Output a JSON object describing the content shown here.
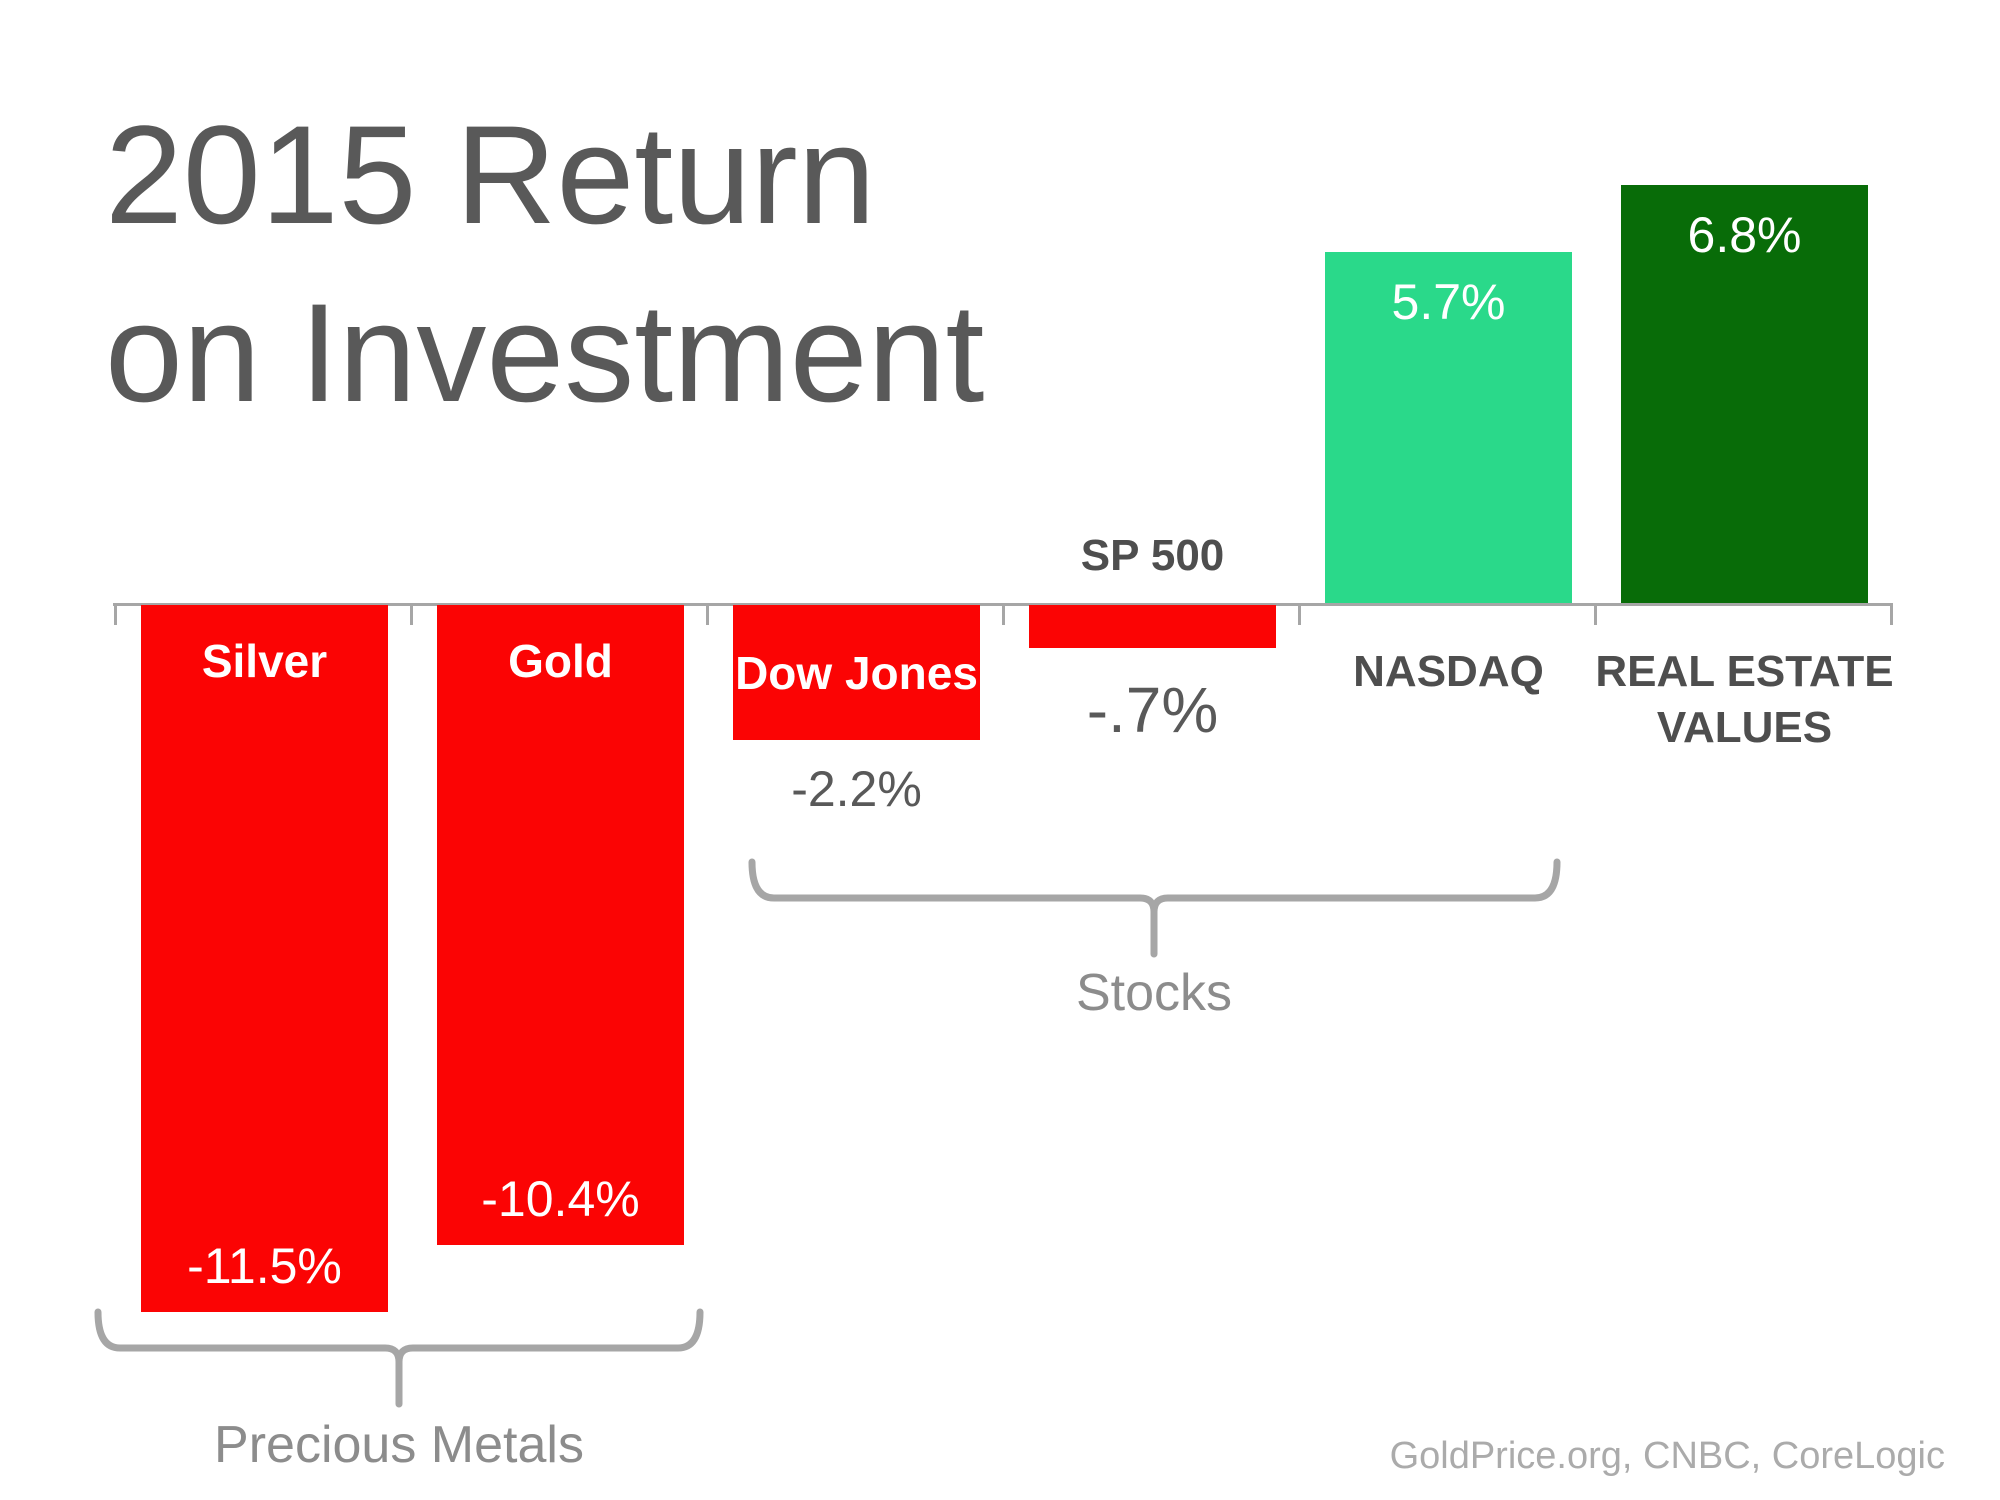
{
  "title": {
    "text": "2015 Return\non Investment",
    "color": "#595959"
  },
  "source": {
    "text": "GoldPrice.org, CNBC, CoreLogic",
    "color": "#ababab"
  },
  "chart_data": {
    "type": "bar",
    "title": "2015 Return on Investment",
    "unit": "percent",
    "xlabel": "",
    "ylabel": "",
    "baseline_value": 0,
    "grid": false,
    "legend": false,
    "categories": [
      "Silver",
      "Gold",
      "Dow Jones",
      "SP 500",
      "NASDAQ",
      "REAL ESTATE VALUES"
    ],
    "values": [
      -11.5,
      -10.4,
      -2.2,
      -0.7,
      5.7,
      6.8
    ],
    "bars": [
      {
        "id": "silver",
        "label": "Silver",
        "value": -11.5,
        "value_label": "-11.5%",
        "color": "red",
        "label_position": "inside-top",
        "value_position": "inside-bottom"
      },
      {
        "id": "gold",
        "label": "Gold",
        "value": -10.4,
        "value_label": "-10.4%",
        "color": "red",
        "label_position": "inside-top",
        "value_position": "inside-bottom"
      },
      {
        "id": "dow-jones",
        "label": "Dow Jones",
        "value": -2.2,
        "value_label": "-2.2%",
        "color": "red",
        "label_position": "inside-middle",
        "value_position": "below-bar"
      },
      {
        "id": "sp-500",
        "label": "SP 500",
        "value": -0.7,
        "value_label": "-.7%",
        "color": "red",
        "label_position": "above-axis",
        "value_position": "below-bar-large"
      },
      {
        "id": "nasdaq",
        "label": "NASDAQ",
        "value": 5.7,
        "value_label": "5.7%",
        "color": "light_green",
        "label_position": "below-axis",
        "value_position": "inside-top"
      },
      {
        "id": "real-estate",
        "label": "REAL ESTATE\nVALUES",
        "value": 6.8,
        "value_label": "6.8%",
        "color": "dark_green",
        "label_position": "below-axis",
        "value_position": "inside-top"
      }
    ],
    "groups": [
      {
        "label": "Precious Metals",
        "spans": [
          "Silver",
          "Gold"
        ]
      },
      {
        "label": "Stocks",
        "spans": [
          "Dow Jones",
          "SP 500",
          "NASDAQ"
        ]
      }
    ],
    "colors": {
      "red": "#fb0404",
      "light_green": "#2ad98a",
      "dark_green": "#086c08",
      "inside_text": "#ffffff",
      "below_value_text": "#595959",
      "category_text": "#4e4e4e",
      "axis": "#a6a6a6",
      "brace": "#a6a6a6",
      "group_text": "#8c8c8c"
    }
  }
}
